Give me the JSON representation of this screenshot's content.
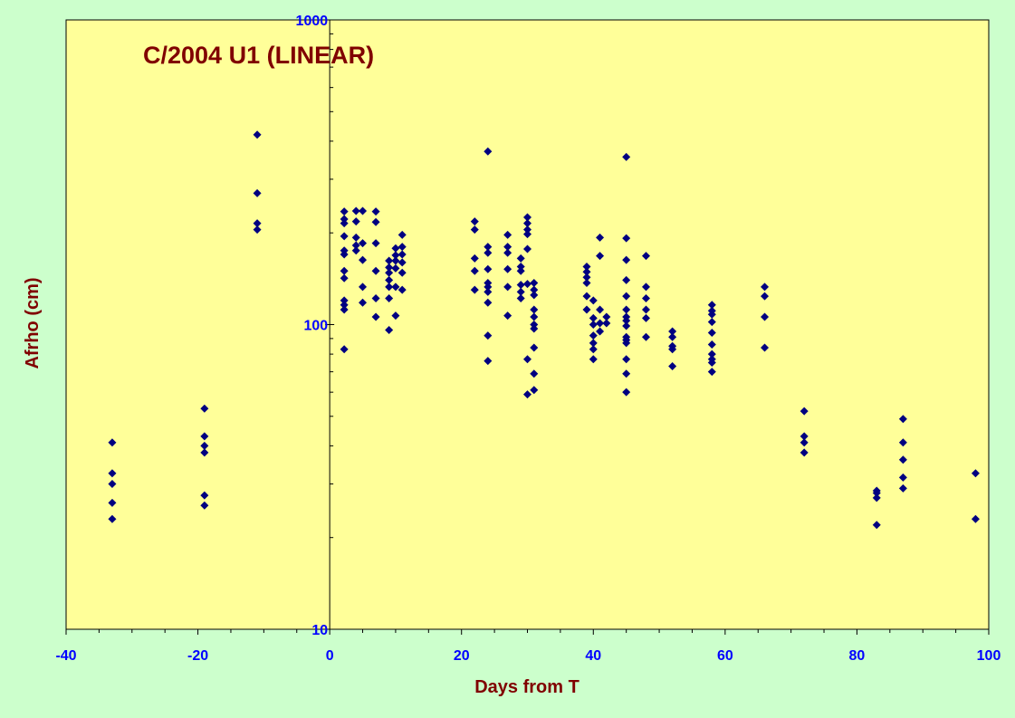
{
  "chart_data": {
    "type": "scatter",
    "title": "C/2004 U1 (LINEAR)",
    "xlabel": "Days from T",
    "ylabel": "Afrho (cm)",
    "xlim": [
      -40,
      100
    ],
    "ylim": [
      10,
      1000
    ],
    "y_scale": "log",
    "grid": false,
    "x_ticks": [
      "-40",
      "-20",
      "0",
      "20",
      "40",
      "60",
      "80",
      "100"
    ],
    "y_ticks": [
      "10",
      "100",
      "1000"
    ],
    "colors": {
      "background": "#ccffcc",
      "plot_area": "#ffff99",
      "marker": "#000080",
      "title": "#800000",
      "axis_title": "#800000",
      "tick_label": "#0000ff",
      "axis_line": "#000000"
    },
    "marker_shape": "diamond",
    "points": [
      [
        -33,
        41
      ],
      [
        -33,
        32.5
      ],
      [
        -33,
        30
      ],
      [
        -33,
        26
      ],
      [
        -33,
        23
      ],
      [
        -19,
        53
      ],
      [
        -19,
        43
      ],
      [
        -19,
        40
      ],
      [
        -19,
        38
      ],
      [
        -19,
        27.5
      ],
      [
        -19,
        25.5
      ],
      [
        -11,
        420
      ],
      [
        -11,
        270
      ],
      [
        -11,
        215
      ],
      [
        -11,
        205
      ],
      [
        2.2,
        235
      ],
      [
        2.2,
        222
      ],
      [
        2.2,
        215
      ],
      [
        2.2,
        195
      ],
      [
        2.2,
        175
      ],
      [
        2.2,
        170
      ],
      [
        2.2,
        150
      ],
      [
        2.2,
        142
      ],
      [
        2.2,
        120
      ],
      [
        2.2,
        116
      ],
      [
        2.2,
        112
      ],
      [
        2.2,
        83
      ],
      [
        4,
        236
      ],
      [
        4,
        218
      ],
      [
        4,
        193
      ],
      [
        4,
        182
      ],
      [
        4,
        175
      ],
      [
        5,
        236
      ],
      [
        5,
        185
      ],
      [
        5,
        163
      ],
      [
        5,
        133
      ],
      [
        5,
        118
      ],
      [
        7,
        235
      ],
      [
        7,
        217
      ],
      [
        7,
        185
      ],
      [
        7,
        150
      ],
      [
        7,
        122
      ],
      [
        7,
        106
      ],
      [
        9,
        162
      ],
      [
        9,
        154
      ],
      [
        9,
        148
      ],
      [
        9,
        140
      ],
      [
        9,
        133
      ],
      [
        9,
        122
      ],
      [
        9,
        96
      ],
      [
        10,
        178
      ],
      [
        10,
        169
      ],
      [
        10,
        162
      ],
      [
        10,
        153
      ],
      [
        10,
        133
      ],
      [
        10,
        107
      ],
      [
        11,
        197
      ],
      [
        11,
        180
      ],
      [
        11,
        170
      ],
      [
        11,
        160
      ],
      [
        11,
        148
      ],
      [
        11,
        130
      ],
      [
        22,
        218
      ],
      [
        22,
        205
      ],
      [
        22,
        165
      ],
      [
        22,
        150
      ],
      [
        22,
        130
      ],
      [
        24,
        370
      ],
      [
        24,
        180
      ],
      [
        24,
        172
      ],
      [
        24,
        152
      ],
      [
        24,
        137
      ],
      [
        24,
        133
      ],
      [
        24,
        128
      ],
      [
        24,
        118
      ],
      [
        24,
        92
      ],
      [
        24,
        76
      ],
      [
        27,
        197
      ],
      [
        27,
        180
      ],
      [
        27,
        172
      ],
      [
        27,
        152
      ],
      [
        27,
        133
      ],
      [
        27,
        107
      ],
      [
        29,
        165
      ],
      [
        29,
        155
      ],
      [
        29,
        150
      ],
      [
        29,
        135
      ],
      [
        29,
        128
      ],
      [
        29,
        122
      ],
      [
        30,
        225
      ],
      [
        30,
        215
      ],
      [
        30,
        205
      ],
      [
        30,
        198
      ],
      [
        30,
        177
      ],
      [
        30,
        136
      ],
      [
        30,
        77
      ],
      [
        30,
        59
      ],
      [
        31,
        137
      ],
      [
        31,
        130
      ],
      [
        31,
        125
      ],
      [
        31,
        112
      ],
      [
        31,
        106
      ],
      [
        31,
        100
      ],
      [
        31,
        97
      ],
      [
        31,
        84
      ],
      [
        31,
        69
      ],
      [
        31,
        61
      ],
      [
        39,
        155
      ],
      [
        39,
        149
      ],
      [
        39,
        143
      ],
      [
        39,
        137
      ],
      [
        39,
        124
      ],
      [
        39,
        112
      ],
      [
        40,
        120
      ],
      [
        40,
        105
      ],
      [
        40,
        100
      ],
      [
        40,
        92
      ],
      [
        40,
        87
      ],
      [
        40,
        83
      ],
      [
        40,
        77
      ],
      [
        41,
        193
      ],
      [
        41,
        168
      ],
      [
        41,
        112
      ],
      [
        41,
        101
      ],
      [
        41,
        95
      ],
      [
        42,
        106
      ],
      [
        42,
        101
      ],
      [
        45,
        355
      ],
      [
        45,
        192
      ],
      [
        45,
        163
      ],
      [
        45,
        140
      ],
      [
        45,
        124
      ],
      [
        45,
        112
      ],
      [
        45,
        106
      ],
      [
        45,
        103
      ],
      [
        45,
        99
      ],
      [
        45,
        91
      ],
      [
        45,
        89
      ],
      [
        45,
        87
      ],
      [
        45,
        77
      ],
      [
        45,
        69
      ],
      [
        45,
        60
      ],
      [
        48,
        168
      ],
      [
        48,
        133
      ],
      [
        48,
        122
      ],
      [
        48,
        112
      ],
      [
        48,
        105
      ],
      [
        48,
        91
      ],
      [
        52,
        95
      ],
      [
        52,
        91
      ],
      [
        52,
        85
      ],
      [
        52,
        83
      ],
      [
        52,
        73
      ],
      [
        58,
        116
      ],
      [
        58,
        111
      ],
      [
        58,
        108
      ],
      [
        58,
        102
      ],
      [
        58,
        94
      ],
      [
        58,
        86
      ],
      [
        58,
        80
      ],
      [
        58,
        77
      ],
      [
        58,
        75
      ],
      [
        58,
        70
      ],
      [
        66,
        133
      ],
      [
        66,
        124
      ],
      [
        66,
        106
      ],
      [
        66,
        84
      ],
      [
        72,
        52
      ],
      [
        72,
        43
      ],
      [
        72,
        41
      ],
      [
        72,
        38
      ],
      [
        83,
        28.5
      ],
      [
        83,
        28
      ],
      [
        83,
        27
      ],
      [
        83,
        22
      ],
      [
        87,
        49
      ],
      [
        87,
        41
      ],
      [
        87,
        36
      ],
      [
        87,
        31.5
      ],
      [
        87,
        29
      ],
      [
        98,
        32.5
      ],
      [
        98,
        23
      ]
    ]
  }
}
